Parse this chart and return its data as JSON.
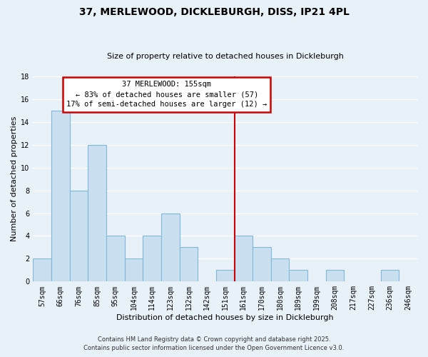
{
  "title": "37, MERLEWOOD, DICKLEBURGH, DISS, IP21 4PL",
  "subtitle": "Size of property relative to detached houses in Dickleburgh",
  "xlabel": "Distribution of detached houses by size in Dickleburgh",
  "ylabel": "Number of detached properties",
  "bar_labels": [
    "57sqm",
    "66sqm",
    "76sqm",
    "85sqm",
    "95sqm",
    "104sqm",
    "114sqm",
    "123sqm",
    "132sqm",
    "142sqm",
    "151sqm",
    "161sqm",
    "170sqm",
    "180sqm",
    "189sqm",
    "199sqm",
    "208sqm",
    "217sqm",
    "227sqm",
    "236sqm",
    "246sqm"
  ],
  "bar_values": [
    2,
    15,
    8,
    12,
    4,
    2,
    4,
    6,
    3,
    0,
    1,
    4,
    3,
    2,
    1,
    0,
    1,
    0,
    0,
    1,
    0
  ],
  "bar_color": "#c9dff0",
  "bar_edge_color": "#7fb8d8",
  "vline_x_index": 10.5,
  "annotation_text_title": "37 MERLEWOOD: 155sqm",
  "annotation_line1": "← 83% of detached houses are smaller (57)",
  "annotation_line2": "17% of semi-detached houses are larger (12) →",
  "vline_color": "#cc0000",
  "annotation_box_facecolor": "#ffffff",
  "annotation_box_edgecolor": "#cc0000",
  "footer1": "Contains HM Land Registry data © Crown copyright and database right 2025.",
  "footer2": "Contains public sector information licensed under the Open Government Licence v3.0.",
  "ylim": [
    0,
    18
  ],
  "yticks": [
    0,
    2,
    4,
    6,
    8,
    10,
    12,
    14,
    16,
    18
  ],
  "background_color": "#e8f0f8",
  "grid_color": "#ffffff",
  "title_fontsize": 10,
  "subtitle_fontsize": 8,
  "xlabel_fontsize": 8,
  "ylabel_fontsize": 8,
  "tick_fontsize": 7,
  "footer_fontsize": 6,
  "annotation_fontsize": 7.5
}
